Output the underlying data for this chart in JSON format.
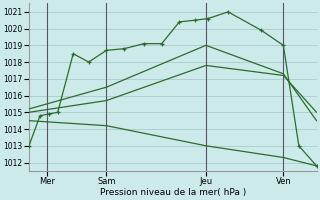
{
  "xlabel": "Pression niveau de la mer( hPa )",
  "bg_color": "#cceaea",
  "grid_color": "#aacccc",
  "line_color": "#2d6b2d",
  "ylim": [
    1011.5,
    1021.5
  ],
  "xlim": [
    0,
    13
  ],
  "x_ticks": [
    0.8,
    3.5,
    8.0,
    11.5
  ],
  "x_tick_labels": [
    "Mer",
    "Sam",
    "Jeu",
    "Ven"
  ],
  "vlines": [
    0.8,
    3.5,
    8.0,
    11.5
  ],
  "series": [
    {
      "x": [
        0.0,
        0.5,
        0.9,
        1.3,
        2.0,
        2.7,
        3.5,
        4.3,
        5.2,
        6.0,
        6.8,
        7.5,
        8.1,
        9.0,
        10.5,
        11.5,
        12.2,
        13.0
      ],
      "y": [
        1013.0,
        1014.8,
        1014.9,
        1015.0,
        1018.5,
        1018.0,
        1018.7,
        1018.8,
        1019.1,
        1019.1,
        1020.4,
        1020.5,
        1020.6,
        1021.0,
        1019.9,
        1019.0,
        1013.0,
        1011.8
      ],
      "marker": true
    },
    {
      "x": [
        0.0,
        3.5,
        8.0,
        11.5,
        13.0
      ],
      "y": [
        1015.2,
        1016.5,
        1019.0,
        1017.3,
        1014.5
      ],
      "marker": false
    },
    {
      "x": [
        0.0,
        3.5,
        8.0,
        11.5,
        13.0
      ],
      "y": [
        1015.0,
        1015.7,
        1017.8,
        1017.2,
        1015.0
      ],
      "marker": false
    },
    {
      "x": [
        0.0,
        3.5,
        8.0,
        11.5,
        13.0
      ],
      "y": [
        1014.5,
        1014.2,
        1013.0,
        1012.3,
        1011.8
      ],
      "marker": false
    }
  ],
  "yticks": [
    1012,
    1013,
    1014,
    1015,
    1016,
    1017,
    1018,
    1019,
    1020,
    1021
  ]
}
